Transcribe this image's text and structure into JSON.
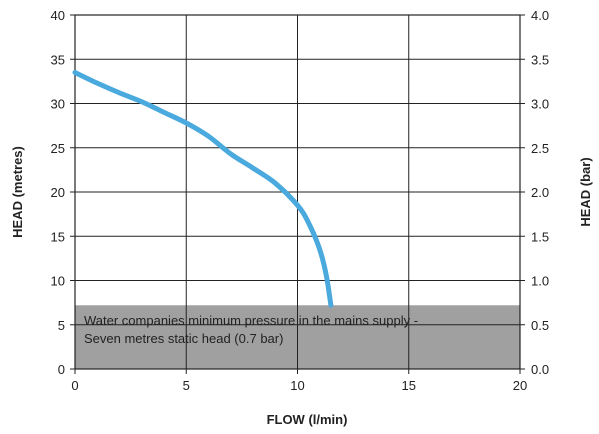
{
  "chart_data": {
    "type": "line",
    "xlabel": "FLOW (l/min)",
    "ylabel": "HEAD (metres)",
    "y2label": "HEAD (bar)",
    "xlim": [
      0,
      20
    ],
    "ylim": [
      0,
      40
    ],
    "y2lim": [
      0.0,
      4.0
    ],
    "x_ticks": [
      "0",
      "5",
      "10",
      "15",
      "20"
    ],
    "y_ticks": [
      "0",
      "5",
      "10",
      "15",
      "20",
      "25",
      "30",
      "35",
      "40"
    ],
    "y2_ticks": [
      "0.0",
      "0.5",
      "1.0",
      "1.5",
      "2.0",
      "2.5",
      "3.0",
      "3.5",
      "4.0"
    ],
    "grid": true,
    "series": [
      {
        "color": "#4aa9dd",
        "x": [
          0,
          1,
          2,
          3,
          4,
          5,
          6,
          7,
          8,
          9,
          10,
          10.5,
          11,
          11.3,
          11.5
        ],
        "y": [
          33.5,
          32.3,
          31.2,
          30.2,
          29.0,
          27.8,
          26.3,
          24.3,
          22.7,
          21.0,
          18.5,
          16.5,
          13.5,
          10.5,
          7.2
        ]
      }
    ],
    "shaded_region": {
      "y_from": 0,
      "y_to": 7.2,
      "color": "#a0a0a0",
      "label_line1": "Water companies minimum pressure in the mains supply -",
      "label_line2": "Seven metres static head (0.7 bar)"
    },
    "colors": {
      "gridline": "#222222",
      "curve": "#4aa9dd",
      "shade": "#a0a0a0"
    }
  }
}
